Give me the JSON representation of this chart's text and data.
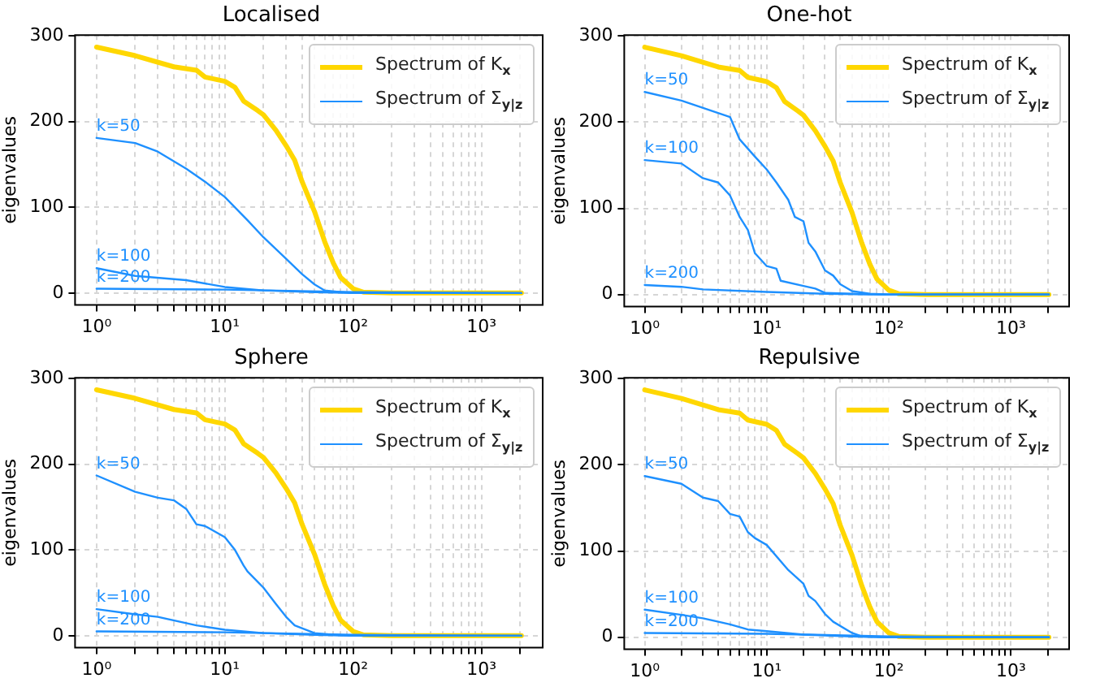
{
  "chart_data": [
    {
      "type": "line",
      "title": "Localised",
      "ylabel": "eigenvalues",
      "log": "x",
      "grid": true,
      "legend": "top right",
      "marker": "none",
      "line_style": "solid",
      "xlim": [
        0.68,
        3000
      ],
      "ylim": [
        -14,
        301
      ],
      "xticks": [
        {
          "value": 1,
          "label": "10⁰"
        },
        {
          "value": 2,
          "label": null
        },
        {
          "value": 3,
          "label": null
        },
        {
          "value": 4,
          "label": null
        },
        {
          "value": 5,
          "label": null
        },
        {
          "value": 6,
          "label": null
        },
        {
          "value": 7,
          "label": null
        },
        {
          "value": 8,
          "label": null
        },
        {
          "value": 9,
          "label": null
        },
        {
          "value": 10,
          "label": "10¹"
        },
        {
          "value": 20,
          "label": null
        },
        {
          "value": 30,
          "label": null
        },
        {
          "value": 40,
          "label": null
        },
        {
          "value": 50,
          "label": null
        },
        {
          "value": 60,
          "label": null
        },
        {
          "value": 70,
          "label": null
        },
        {
          "value": 80,
          "label": null
        },
        {
          "value": 90,
          "label": null
        },
        {
          "value": 100,
          "label": "10²"
        },
        {
          "value": 200,
          "label": null
        },
        {
          "value": 300,
          "label": null
        },
        {
          "value": 400,
          "label": null
        },
        {
          "value": 500,
          "label": null
        },
        {
          "value": 600,
          "label": null
        },
        {
          "value": 700,
          "label": null
        },
        {
          "value": 800,
          "label": null
        },
        {
          "value": 900,
          "label": null
        },
        {
          "value": 1000,
          "label": "10³"
        },
        {
          "value": 2000,
          "label": null
        }
      ],
      "yticks": [
        0,
        100,
        200,
        300
      ],
      "series": [
        {
          "name": "Spectrum of K$_{x}$",
          "color": "#ffd700",
          "x": [
            1,
            2,
            4,
            6,
            7,
            10,
            12,
            14,
            18,
            20,
            25,
            30,
            35,
            40,
            50,
            60,
            70,
            80,
            100,
            120,
            200,
            2048
          ],
          "values": [
            287,
            277,
            264,
            260,
            252,
            247,
            240,
            224,
            213,
            208,
            190,
            172,
            155,
            130,
            95,
            60,
            35,
            18,
            5,
            1,
            0,
            0
          ]
        },
        {
          "name": "Spectrum of Σ$_{y|z}$",
          "color": "#1e90ff",
          "x": [
            1,
            2,
            3,
            5,
            7,
            10,
            15,
            20,
            30,
            40,
            50,
            60,
            80,
            100,
            2048
          ],
          "values": [
            181,
            175,
            165,
            145,
            130,
            112,
            85,
            65,
            40,
            22,
            10,
            3,
            1,
            0,
            0
          ]
        },
        {
          "color": "#1e90ff",
          "x": [
            1,
            2,
            5,
            10,
            20,
            50,
            100,
            2048
          ],
          "values": [
            29,
            20,
            15,
            7,
            3,
            1,
            0,
            0
          ]
        },
        {
          "color": "#1e90ff",
          "x": [
            1,
            10,
            100,
            2048
          ],
          "values": [
            5,
            4,
            1,
            0
          ]
        }
      ],
      "annotations": [
        "k=50",
        "k=100",
        "k=200"
      ]
    },
    {
      "type": "line",
      "title": "One-hot",
      "ylabel": "eigenvalues",
      "log": "x",
      "grid": true,
      "legend": "top right",
      "marker": "none",
      "line_style": "solid",
      "xlim": [
        0.68,
        3000
      ],
      "ylim": [
        -14,
        301
      ],
      "xticks": [
        {
          "value": 1,
          "label": "10⁰"
        },
        {
          "value": 2,
          "label": null
        },
        {
          "value": 3,
          "label": null
        },
        {
          "value": 4,
          "label": null
        },
        {
          "value": 5,
          "label": null
        },
        {
          "value": 6,
          "label": null
        },
        {
          "value": 7,
          "label": null
        },
        {
          "value": 8,
          "label": null
        },
        {
          "value": 9,
          "label": null
        },
        {
          "value": 10,
          "label": "10¹"
        },
        {
          "value": 20,
          "label": null
        },
        {
          "value": 30,
          "label": null
        },
        {
          "value": 40,
          "label": null
        },
        {
          "value": 50,
          "label": null
        },
        {
          "value": 60,
          "label": null
        },
        {
          "value": 70,
          "label": null
        },
        {
          "value": 80,
          "label": null
        },
        {
          "value": 90,
          "label": null
        },
        {
          "value": 100,
          "label": "10²"
        },
        {
          "value": 200,
          "label": null
        },
        {
          "value": 300,
          "label": null
        },
        {
          "value": 400,
          "label": null
        },
        {
          "value": 500,
          "label": null
        },
        {
          "value": 600,
          "label": null
        },
        {
          "value": 700,
          "label": null
        },
        {
          "value": 800,
          "label": null
        },
        {
          "value": 900,
          "label": null
        },
        {
          "value": 1000,
          "label": "10³"
        },
        {
          "value": 2000,
          "label": null
        }
      ],
      "yticks": [
        0,
        100,
        200,
        300
      ],
      "series": [
        {
          "name": "Spectrum of K$_{x}$",
          "color": "#ffd700",
          "x": [
            1,
            2,
            4,
            6,
            7,
            10,
            12,
            14,
            18,
            20,
            25,
            30,
            35,
            40,
            50,
            60,
            70,
            80,
            100,
            120,
            200,
            2048
          ],
          "values": [
            287,
            277,
            264,
            260,
            252,
            247,
            240,
            224,
            213,
            208,
            190,
            172,
            155,
            130,
            95,
            60,
            35,
            18,
            5,
            1,
            0,
            0
          ]
        },
        {
          "name": "Spectrum of Σ$_{y|z}$",
          "color": "#1e90ff",
          "x": [
            1,
            2,
            5,
            6,
            8,
            10,
            12,
            15,
            17,
            20,
            22,
            25,
            30,
            35,
            40,
            50,
            70,
            100,
            2048
          ],
          "values": [
            235,
            225,
            206,
            180,
            160,
            145,
            130,
            110,
            90,
            85,
            60,
            50,
            28,
            22,
            12,
            4,
            1,
            0,
            0
          ]
        },
        {
          "color": "#1e90ff",
          "x": [
            1,
            2,
            3,
            4,
            5,
            6,
            7,
            8,
            10,
            12,
            13,
            20,
            25,
            30,
            50,
            100,
            2048
          ],
          "values": [
            156,
            152,
            135,
            130,
            115,
            90,
            75,
            48,
            33,
            30,
            16,
            10,
            7,
            2,
            1,
            0,
            0
          ]
        },
        {
          "color": "#1e90ff",
          "x": [
            1,
            2,
            3,
            10,
            30,
            100,
            2048
          ],
          "values": [
            11,
            9,
            6,
            3,
            1,
            0,
            0
          ]
        }
      ],
      "annotations": [
        "k=50",
        "k=100",
        "k=200"
      ]
    },
    {
      "type": "line",
      "title": "Sphere",
      "ylabel": "eigenvalues",
      "log": "x",
      "grid": true,
      "legend": "top right",
      "marker": "none",
      "line_style": "solid",
      "xlim": [
        0.68,
        3000
      ],
      "ylim": [
        -14,
        301
      ],
      "xticks": [
        {
          "value": 1,
          "label": "10⁰"
        },
        {
          "value": 2,
          "label": null
        },
        {
          "value": 3,
          "label": null
        },
        {
          "value": 4,
          "label": null
        },
        {
          "value": 5,
          "label": null
        },
        {
          "value": 6,
          "label": null
        },
        {
          "value": 7,
          "label": null
        },
        {
          "value": 8,
          "label": null
        },
        {
          "value": 9,
          "label": null
        },
        {
          "value": 10,
          "label": "10¹"
        },
        {
          "value": 20,
          "label": null
        },
        {
          "value": 30,
          "label": null
        },
        {
          "value": 40,
          "label": null
        },
        {
          "value": 50,
          "label": null
        },
        {
          "value": 60,
          "label": null
        },
        {
          "value": 70,
          "label": null
        },
        {
          "value": 80,
          "label": null
        },
        {
          "value": 90,
          "label": null
        },
        {
          "value": 100,
          "label": "10²"
        },
        {
          "value": 200,
          "label": null
        },
        {
          "value": 300,
          "label": null
        },
        {
          "value": 400,
          "label": null
        },
        {
          "value": 500,
          "label": null
        },
        {
          "value": 600,
          "label": null
        },
        {
          "value": 700,
          "label": null
        },
        {
          "value": 800,
          "label": null
        },
        {
          "value": 900,
          "label": null
        },
        {
          "value": 1000,
          "label": "10³"
        },
        {
          "value": 2000,
          "label": null
        }
      ],
      "yticks": [
        0,
        100,
        200,
        300
      ],
      "series": [
        {
          "name": "Spectrum of K$_{x}$",
          "color": "#ffd700",
          "x": [
            1,
            2,
            4,
            6,
            7,
            10,
            12,
            14,
            18,
            20,
            25,
            30,
            35,
            40,
            50,
            60,
            70,
            80,
            100,
            120,
            200,
            2048
          ],
          "values": [
            287,
            277,
            264,
            260,
            252,
            247,
            240,
            224,
            213,
            208,
            190,
            172,
            155,
            130,
            95,
            60,
            35,
            18,
            5,
            1,
            0,
            0
          ]
        },
        {
          "name": "Spectrum of Σ$_{y|z}$",
          "color": "#1e90ff",
          "x": [
            1,
            2,
            3,
            4,
            5,
            6,
            7,
            10,
            12,
            14,
            15,
            18,
            20,
            25,
            30,
            35,
            50,
            70,
            100,
            2048
          ],
          "values": [
            187,
            168,
            161,
            158,
            148,
            130,
            128,
            115,
            100,
            82,
            75,
            63,
            56,
            37,
            22,
            12,
            3,
            1,
            0,
            0
          ]
        },
        {
          "color": "#1e90ff",
          "x": [
            1,
            2,
            3,
            6,
            10,
            20,
            50,
            100,
            2048
          ],
          "values": [
            31,
            25,
            22,
            12,
            7,
            3,
            1,
            0,
            0
          ]
        },
        {
          "color": "#1e90ff",
          "x": [
            1,
            10,
            100,
            2048
          ],
          "values": [
            5,
            4,
            1,
            0
          ]
        }
      ],
      "annotations": [
        "k=50",
        "k=100",
        "k=200"
      ]
    },
    {
      "type": "line",
      "title": "Repulsive",
      "ylabel": "eigenvalues",
      "log": "x",
      "grid": true,
      "legend": "top right",
      "marker": "none",
      "line_style": "solid",
      "xlim": [
        0.68,
        3000
      ],
      "ylim": [
        -14,
        301
      ],
      "xticks": [
        {
          "value": 1,
          "label": "10⁰"
        },
        {
          "value": 2,
          "label": null
        },
        {
          "value": 3,
          "label": null
        },
        {
          "value": 4,
          "label": null
        },
        {
          "value": 5,
          "label": null
        },
        {
          "value": 6,
          "label": null
        },
        {
          "value": 7,
          "label": null
        },
        {
          "value": 8,
          "label": null
        },
        {
          "value": 9,
          "label": null
        },
        {
          "value": 10,
          "label": "10¹"
        },
        {
          "value": 20,
          "label": null
        },
        {
          "value": 30,
          "label": null
        },
        {
          "value": 40,
          "label": null
        },
        {
          "value": 50,
          "label": null
        },
        {
          "value": 60,
          "label": null
        },
        {
          "value": 70,
          "label": null
        },
        {
          "value": 80,
          "label": null
        },
        {
          "value": 90,
          "label": null
        },
        {
          "value": 100,
          "label": "10²"
        },
        {
          "value": 200,
          "label": null
        },
        {
          "value": 300,
          "label": null
        },
        {
          "value": 400,
          "label": null
        },
        {
          "value": 500,
          "label": null
        },
        {
          "value": 600,
          "label": null
        },
        {
          "value": 700,
          "label": null
        },
        {
          "value": 800,
          "label": null
        },
        {
          "value": 900,
          "label": null
        },
        {
          "value": 1000,
          "label": "10³"
        },
        {
          "value": 2000,
          "label": null
        }
      ],
      "yticks": [
        0,
        100,
        200,
        300
      ],
      "series": [
        {
          "name": "Spectrum of K$_{x}$",
          "color": "#ffd700",
          "x": [
            1,
            2,
            4,
            6,
            7,
            10,
            12,
            14,
            18,
            20,
            25,
            30,
            35,
            40,
            50,
            60,
            70,
            80,
            100,
            120,
            200,
            2048
          ],
          "values": [
            287,
            277,
            264,
            260,
            252,
            247,
            240,
            224,
            213,
            208,
            190,
            172,
            155,
            130,
            95,
            60,
            35,
            18,
            5,
            1,
            0,
            0
          ]
        },
        {
          "name": "Spectrum of Σ$_{y|z}$",
          "color": "#1e90ff",
          "x": [
            1,
            2,
            3,
            4,
            5,
            6,
            7,
            8,
            10,
            15,
            20,
            22,
            25,
            30,
            35,
            50,
            60,
            100,
            2048
          ],
          "values": [
            187,
            178,
            162,
            158,
            143,
            140,
            122,
            115,
            107,
            78,
            62,
            48,
            42,
            27,
            18,
            5,
            1,
            0,
            0
          ]
        },
        {
          "color": "#1e90ff",
          "x": [
            1,
            2,
            3,
            5,
            7,
            10,
            20,
            50,
            100,
            2048
          ],
          "values": [
            32,
            26,
            22,
            15,
            9,
            7,
            3,
            1,
            0,
            0
          ]
        },
        {
          "color": "#1e90ff",
          "x": [
            1,
            10,
            100,
            2048
          ],
          "values": [
            5,
            4,
            1,
            0
          ]
        }
      ],
      "annotations": [
        "k=50",
        "k=100",
        "k=200"
      ]
    }
  ]
}
